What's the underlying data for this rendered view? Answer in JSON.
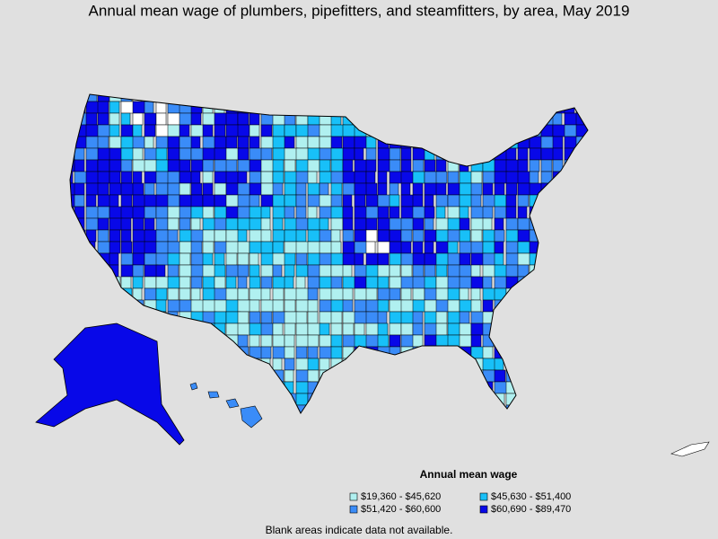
{
  "title": "Annual mean wage of plumbers, pipefitters, and steamfitters, by area, May 2019",
  "legend": {
    "title": "Annual mean wage",
    "items": [
      {
        "label": "$19,360 - $45,620",
        "color": "#b0f0f0"
      },
      {
        "label": "$45,630 - $51,400",
        "color": "#18c0f8"
      },
      {
        "label": "$51,420 - $60,600",
        "color": "#3a8cf8"
      },
      {
        "label": "$60,690 - $89,470",
        "color": "#0808e8"
      }
    ]
  },
  "note": "Blank areas indicate data not available."
}
